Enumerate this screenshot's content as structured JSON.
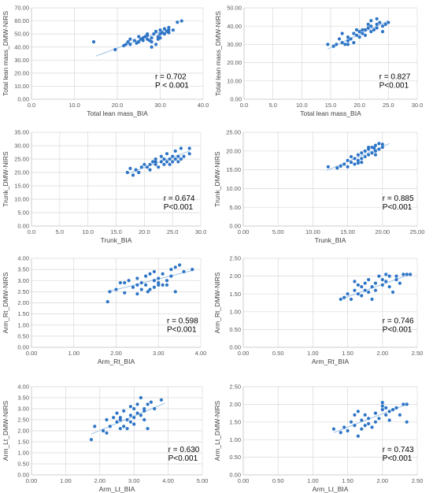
{
  "chart_data": [
    {
      "type": "scatter",
      "xlabel": "Total lean mass_BIA",
      "ylabel": "Total lean mass_DMW-NIRS",
      "xlim": [
        0,
        40
      ],
      "ylim": [
        0,
        70
      ],
      "xticks": [
        "0.0",
        "10.0",
        "20.0",
        "30.0",
        "40.0"
      ],
      "yticks": [
        "0.00",
        "10.00",
        "20.00",
        "30.00",
        "40.00",
        "50.00",
        "60.00",
        "70.00"
      ],
      "r_text": "r = 0.702",
      "p_text": "P < 0.001",
      "trendline": [
        [
          15,
          33
        ],
        [
          32,
          54
        ]
      ],
      "points": [
        [
          14.5,
          44
        ],
        [
          19.5,
          38
        ],
        [
          21.5,
          41
        ],
        [
          22,
          42
        ],
        [
          22.5,
          44
        ],
        [
          23,
          46
        ],
        [
          24,
          45
        ],
        [
          24.5,
          43
        ],
        [
          25,
          44
        ],
        [
          25.5,
          46
        ],
        [
          26,
          47
        ],
        [
          26.5,
          48
        ],
        [
          26,
          45
        ],
        [
          27,
          46
        ],
        [
          27,
          49
        ],
        [
          27.5,
          45
        ],
        [
          28,
          44
        ],
        [
          28,
          47
        ],
        [
          28.5,
          50
        ],
        [
          29,
          52
        ],
        [
          29,
          42
        ],
        [
          29.5,
          46
        ],
        [
          29.5,
          48
        ],
        [
          30,
          50
        ],
        [
          30,
          53
        ],
        [
          30.5,
          51
        ],
        [
          31,
          50
        ],
        [
          31,
          54
        ],
        [
          31.5,
          52
        ],
        [
          32,
          53
        ],
        [
          32,
          51
        ],
        [
          33,
          53
        ],
        [
          34,
          59
        ],
        [
          35,
          60
        ],
        [
          23,
          42
        ],
        [
          25,
          48
        ],
        [
          28,
          40
        ],
        [
          27,
          50
        ],
        [
          30,
          47
        ],
        [
          32,
          55
        ]
      ]
    },
    {
      "type": "scatter",
      "xlabel": "Total lean mass_BIA",
      "ylabel": "Total lean mass_DMW-NIRS",
      "xlim": [
        0,
        30
      ],
      "ylim": [
        0,
        50
      ],
      "xticks": [
        "0.0",
        "5.0",
        "10.0",
        "15.0",
        "20.0",
        "25.0",
        "30.0"
      ],
      "yticks": [
        "0.00",
        "10.00",
        "20.00",
        "30.00",
        "40.00",
        "50.00"
      ],
      "r_text": "r = 0.827",
      "p_text": "P<0.001",
      "trendline": [
        [
          14.5,
          27.5
        ],
        [
          25,
          43
        ]
      ],
      "points": [
        [
          14.5,
          30
        ],
        [
          15.5,
          29
        ],
        [
          16,
          30
        ],
        [
          16.5,
          33
        ],
        [
          17,
          31
        ],
        [
          17,
          36
        ],
        [
          17.5,
          30
        ],
        [
          18,
          32
        ],
        [
          18,
          34
        ],
        [
          18.5,
          33
        ],
        [
          19,
          36
        ],
        [
          19,
          31
        ],
        [
          19.5,
          35
        ],
        [
          20,
          34
        ],
        [
          20,
          37
        ],
        [
          20.5,
          36
        ],
        [
          20.5,
          38
        ],
        [
          21,
          35
        ],
        [
          21,
          38
        ],
        [
          21.5,
          39
        ],
        [
          22,
          37
        ],
        [
          22,
          43
        ],
        [
          22,
          40
        ],
        [
          22.5,
          38
        ],
        [
          23,
          41
        ],
        [
          23,
          39
        ],
        [
          23.5,
          42
        ],
        [
          24,
          40
        ],
        [
          24.5,
          41
        ],
        [
          25,
          42
        ],
        [
          24,
          37
        ],
        [
          21.5,
          41
        ],
        [
          18,
          30
        ],
        [
          19.5,
          38
        ],
        [
          23,
          44
        ]
      ]
    },
    {
      "type": "scatter",
      "xlabel": "Trunk_BIA",
      "ylabel": "Trunk_DMW-NIRS",
      "xlim": [
        0,
        30
      ],
      "ylim": [
        0,
        35
      ],
      "xticks": [
        "0.0",
        "5.0",
        "10.0",
        "15.0",
        "20.0",
        "25.0",
        "30.0"
      ],
      "yticks": [
        "0.00",
        "5.00",
        "10.00",
        "15.00",
        "20.00",
        "25.00",
        "30.00",
        "35.00"
      ],
      "r_text": "r = 0.674",
      "p_text": "P<0.001",
      "trendline": [
        [
          17,
          19.5
        ],
        [
          28,
          28
        ]
      ],
      "points": [
        [
          17,
          20
        ],
        [
          17.5,
          21.5
        ],
        [
          18,
          19
        ],
        [
          18.5,
          21
        ],
        [
          19,
          20
        ],
        [
          19.5,
          22
        ],
        [
          20,
          23
        ],
        [
          20.5,
          22
        ],
        [
          21,
          23
        ],
        [
          21,
          21
        ],
        [
          21.5,
          24
        ],
        [
          22,
          23
        ],
        [
          22,
          25
        ],
        [
          22.5,
          22
        ],
        [
          23,
          24
        ],
        [
          23,
          26
        ],
        [
          23.5,
          25
        ],
        [
          23.5,
          23
        ],
        [
          24,
          24
        ],
        [
          24,
          27
        ],
        [
          24.5,
          25
        ],
        [
          24.5,
          23
        ],
        [
          25,
          26
        ],
        [
          25,
          24
        ],
        [
          25.5,
          25
        ],
        [
          25.5,
          28
        ],
        [
          26,
          24
        ],
        [
          26,
          26
        ],
        [
          26.5,
          25
        ],
        [
          26.5,
          29
        ],
        [
          27,
          26
        ],
        [
          28,
          29
        ],
        [
          28,
          27
        ],
        [
          19,
          20
        ],
        [
          22,
          24
        ]
      ]
    },
    {
      "type": "scatter",
      "xlabel": "Trunk_BIA",
      "ylabel": "Trunk_DMW-NIRS",
      "xlim": [
        0,
        25
      ],
      "ylim": [
        0,
        25
      ],
      "xticks": [
        "0.00",
        "5.00",
        "10.00",
        "15.00",
        "20.00",
        "25.00"
      ],
      "yticks": [
        "0.00",
        "5.00",
        "10.00",
        "15.00",
        "20.00",
        "25.00"
      ],
      "r_text": "r = 0.885",
      "p_text": "P<0.001",
      "trendline": [
        [
          12,
          14.8
        ],
        [
          21,
          22
        ]
      ],
      "points": [
        [
          12.2,
          15.8
        ],
        [
          13.5,
          15.5
        ],
        [
          14,
          16
        ],
        [
          14.5,
          16.5
        ],
        [
          15,
          15.8
        ],
        [
          15,
          17.5
        ],
        [
          15.5,
          17
        ],
        [
          15.5,
          18.5
        ],
        [
          16,
          16.5
        ],
        [
          16,
          18
        ],
        [
          16.5,
          17.5
        ],
        [
          16.5,
          19
        ],
        [
          17,
          18
        ],
        [
          17,
          19.5
        ],
        [
          17.5,
          18.5
        ],
        [
          17.5,
          20
        ],
        [
          18,
          19
        ],
        [
          18,
          20.5
        ],
        [
          18.5,
          19.5
        ],
        [
          18.5,
          21
        ],
        [
          19,
          20
        ],
        [
          19,
          21.5
        ],
        [
          19.5,
          20.5
        ],
        [
          19.5,
          22
        ],
        [
          20,
          21
        ],
        [
          20,
          21.8
        ],
        [
          18,
          21
        ],
        [
          17,
          17
        ],
        [
          19,
          19
        ],
        [
          16.5,
          16.8
        ],
        [
          18.8,
          20.8
        ]
      ]
    },
    {
      "type": "scatter",
      "xlabel": "Arm_Rt_BIA",
      "ylabel": "Arm_Rt_DMW-NIRS",
      "xlim": [
        0,
        4
      ],
      "ylim": [
        0,
        4
      ],
      "xticks": [
        "0.00",
        "1.00",
        "2.00",
        "3.00",
        "4.00"
      ],
      "yticks": [
        "0.00",
        "0.50",
        "1.00",
        "1.50",
        "2.00",
        "2.50",
        "3.00",
        "3.50",
        "4.00"
      ],
      "r_text": "r = 0.598",
      "p_text": "P<0.001",
      "trendline": [
        [
          1.8,
          2.5
        ],
        [
          3.8,
          3.45
        ]
      ],
      "points": [
        [
          1.8,
          2.05
        ],
        [
          1.85,
          2.5
        ],
        [
          2.0,
          2.6
        ],
        [
          2.1,
          2.9
        ],
        [
          2.2,
          2.45
        ],
        [
          2.2,
          2.9
        ],
        [
          2.3,
          3.0
        ],
        [
          2.4,
          2.7
        ],
        [
          2.5,
          3.1
        ],
        [
          2.5,
          2.8
        ],
        [
          2.6,
          2.9
        ],
        [
          2.6,
          2.6
        ],
        [
          2.7,
          3.2
        ],
        [
          2.7,
          2.8
        ],
        [
          2.75,
          2.5
        ],
        [
          2.8,
          3.3
        ],
        [
          2.8,
          2.6
        ],
        [
          2.9,
          3.0
        ],
        [
          2.9,
          2.7
        ],
        [
          3.0,
          2.9
        ],
        [
          3.0,
          3.1
        ],
        [
          3.1,
          2.8
        ],
        [
          3.1,
          3.3
        ],
        [
          3.2,
          3.0
        ],
        [
          3.3,
          3.5
        ],
        [
          3.3,
          3.2
        ],
        [
          3.4,
          2.5
        ],
        [
          3.4,
          3.6
        ],
        [
          3.5,
          3.7
        ],
        [
          3.6,
          3.4
        ],
        [
          3.8,
          3.5
        ],
        [
          2.5,
          2.4
        ],
        [
          2.9,
          3.4
        ],
        [
          3.0,
          2.8
        ],
        [
          3.2,
          2.8
        ]
      ]
    },
    {
      "type": "scatter",
      "xlabel": "Arm_Rt_BIA",
      "ylabel": "Arm_Rt_DMW-NIRS",
      "xlim": [
        0,
        2.5
      ],
      "ylim": [
        0,
        2.5
      ],
      "xticks": [
        "0.00",
        "0.50",
        "1.00",
        "1.50",
        "2.00",
        "2.50"
      ],
      "yticks": [
        "0.00",
        "0.50",
        "1.00",
        "1.50",
        "2.00",
        "2.50"
      ],
      "r_text": "r = 0.746",
      "p_text": "P<0.001",
      "trendline": [
        [
          1.4,
          1.35
        ],
        [
          2.4,
          2.05
        ]
      ],
      "points": [
        [
          1.4,
          1.35
        ],
        [
          1.45,
          1.4
        ],
        [
          1.5,
          1.5
        ],
        [
          1.55,
          1.35
        ],
        [
          1.6,
          1.6
        ],
        [
          1.6,
          1.85
        ],
        [
          1.65,
          1.5
        ],
        [
          1.7,
          1.7
        ],
        [
          1.7,
          1.45
        ],
        [
          1.75,
          1.8
        ],
        [
          1.75,
          1.6
        ],
        [
          1.8,
          1.9
        ],
        [
          1.8,
          1.55
        ],
        [
          1.85,
          1.7
        ],
        [
          1.9,
          1.8
        ],
        [
          1.9,
          1.6
        ],
        [
          1.95,
          2.0
        ],
        [
          2.0,
          1.75
        ],
        [
          2.0,
          1.9
        ],
        [
          2.05,
          2.05
        ],
        [
          2.05,
          1.85
        ],
        [
          2.1,
          1.7
        ],
        [
          2.1,
          2.0
        ],
        [
          2.15,
          1.55
        ],
        [
          2.2,
          1.9
        ],
        [
          2.2,
          2.0
        ],
        [
          2.25,
          1.8
        ],
        [
          2.3,
          2.05
        ],
        [
          2.35,
          2.05
        ],
        [
          2.4,
          2.05
        ],
        [
          1.65,
          1.75
        ],
        [
          1.85,
          1.35
        ]
      ]
    },
    {
      "type": "scatter",
      "xlabel": "Arm_Lt_BIA",
      "ylabel": "Arm_Lt_DMW-NIRS",
      "xlim": [
        0,
        5
      ],
      "ylim": [
        0,
        4
      ],
      "xticks": [
        "0.00",
        "1.00",
        "2.00",
        "3.00",
        "4.00",
        "5.00"
      ],
      "yticks": [
        "0.00",
        "0.50",
        "1.00",
        "1.50",
        "2.00",
        "2.50",
        "3.00",
        "3.50",
        "4.00"
      ],
      "r_text": "r = 0.630",
      "p_text": "P<0.001",
      "trendline": [
        [
          1.75,
          1.85
        ],
        [
          3.9,
          3.25
        ]
      ],
      "points": [
        [
          1.75,
          1.6
        ],
        [
          1.85,
          2.2
        ],
        [
          2.1,
          2.0
        ],
        [
          2.2,
          2.5
        ],
        [
          2.3,
          2.2
        ],
        [
          2.4,
          2.6
        ],
        [
          2.5,
          2.4
        ],
        [
          2.5,
          2.8
        ],
        [
          2.6,
          2.1
        ],
        [
          2.6,
          2.6
        ],
        [
          2.7,
          2.2
        ],
        [
          2.7,
          2.9
        ],
        [
          2.8,
          2.5
        ],
        [
          2.8,
          2.1
        ],
        [
          2.9,
          2.7
        ],
        [
          2.9,
          2.4
        ],
        [
          3.0,
          2.6
        ],
        [
          3.0,
          3.0
        ],
        [
          3.1,
          2.8
        ],
        [
          3.1,
          3.2
        ],
        [
          3.2,
          3.5
        ],
        [
          3.2,
          2.7
        ],
        [
          3.3,
          3.0
        ],
        [
          3.3,
          2.5
        ],
        [
          3.4,
          3.2
        ],
        [
          3.4,
          2.1
        ],
        [
          3.5,
          3.3
        ],
        [
          3.6,
          3.0
        ],
        [
          3.8,
          3.4
        ],
        [
          2.2,
          1.9
        ],
        [
          2.6,
          2.5
        ],
        [
          3.0,
          2.3
        ],
        [
          3.3,
          2.9
        ],
        [
          2.9,
          3.1
        ]
      ]
    },
    {
      "type": "scatter",
      "xlabel": "Arm_Lt_BIA",
      "ylabel": "Arm_Lt_DMW-NIRS",
      "xlim": [
        0,
        2.5
      ],
      "ylim": [
        0,
        2.5
      ],
      "xticks": [
        "0.00",
        "0.50",
        "1.00",
        "1.50",
        "2.00",
        "2.50"
      ],
      "yticks": [
        "0.00",
        "0.50",
        "1.00",
        "1.50",
        "2.00",
        "2.50"
      ],
      "r_text": "r = 0.743",
      "p_text": "P<0.001",
      "trendline": [
        [
          1.3,
          1.2
        ],
        [
          2.35,
          2.0
        ]
      ],
      "points": [
        [
          1.3,
          1.3
        ],
        [
          1.4,
          1.2
        ],
        [
          1.45,
          1.35
        ],
        [
          1.5,
          1.25
        ],
        [
          1.55,
          1.5
        ],
        [
          1.6,
          1.7
        ],
        [
          1.6,
          1.4
        ],
        [
          1.65,
          1.8
        ],
        [
          1.65,
          1.1
        ],
        [
          1.7,
          1.55
        ],
        [
          1.7,
          1.3
        ],
        [
          1.75,
          1.7
        ],
        [
          1.8,
          1.45
        ],
        [
          1.8,
          1.6
        ],
        [
          1.85,
          1.35
        ],
        [
          1.9,
          1.5
        ],
        [
          1.9,
          1.75
        ],
        [
          1.95,
          1.6
        ],
        [
          2.0,
          2.05
        ],
        [
          2.0,
          1.95
        ],
        [
          2.05,
          1.7
        ],
        [
          2.05,
          1.9
        ],
        [
          2.1,
          1.8
        ],
        [
          2.1,
          1.55
        ],
        [
          2.15,
          1.85
        ],
        [
          2.2,
          1.9
        ],
        [
          2.25,
          1.7
        ],
        [
          2.3,
          2.0
        ],
        [
          2.35,
          2.0
        ],
        [
          2.35,
          1.5
        ],
        [
          1.75,
          1.4
        ],
        [
          2.0,
          1.85
        ]
      ]
    }
  ]
}
